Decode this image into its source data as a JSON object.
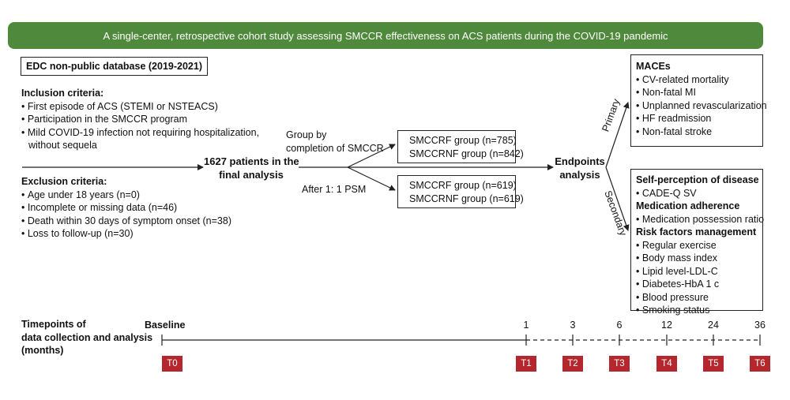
{
  "banner": "A single-center, retrospective cohort study assessing SMCCR effectiveness on ACS patients during the COVID-19 pandemic",
  "database": "EDC non-public database (2019-2021)",
  "inclusion": {
    "heading": "Inclusion criteria:",
    "items": [
      "First episode of ACS (STEMI or NSTEACS)",
      "Participation in the SMCCR program",
      "Mild COVID-19 infection not requiring hospitalization,",
      "without sequela"
    ]
  },
  "exclusion": {
    "heading": "Exclusion criteria:",
    "items": [
      "Age under 18 years (n=0)",
      "Incomplete or missing data (n=46)",
      "Death within 30 days of symptom onset (n=38)",
      "Loss to follow-up (n=30)"
    ]
  },
  "patients": {
    "line1": "1627 patients in the",
    "line2": "final analysis"
  },
  "grouping": {
    "line1": "Group by",
    "line2": "completion of SMCCR",
    "psm": "After 1: 1 PSM"
  },
  "groups_before": [
    "SMCCRF group (n=785)",
    "SMCCRNF group (n=842)"
  ],
  "groups_after": [
    "SMCCRF group (n=619)",
    "SMCCRNF group (n=619)"
  ],
  "endpoints": {
    "line1": "Endpoints",
    "line2": "analysis",
    "primary": "Primary",
    "secondary": "Secondary"
  },
  "maces": {
    "heading": "MACEs",
    "items": [
      "CV-related mortality",
      "Non-fatal MI",
      "Unplanned revascularization",
      "HF readmission",
      "Non-fatal stroke"
    ]
  },
  "secondary_box": {
    "self_heading": "Self-perception of disease",
    "self_items": [
      "CADE-Q SV"
    ],
    "med_heading": "Medication adherence",
    "med_items": [
      "Medication possession ratio"
    ],
    "risk_heading": "Risk factors management",
    "risk_items": [
      "Regular exercise",
      "Body mass index",
      "Lipid level-LDL-C",
      "Diabetes-HbA 1 c",
      "Blood pressure",
      "Smoking status"
    ]
  },
  "timeline": {
    "label": [
      "Timepoints of",
      "data collection and analysis",
      "(months)"
    ],
    "baseline": "Baseline",
    "months": [
      "1",
      "3",
      "6",
      "12",
      "24",
      "36"
    ],
    "tags": [
      "T0",
      "T1",
      "T2",
      "T3",
      "T4",
      "T5",
      "T6"
    ],
    "tag_color": "#b3272d",
    "banner_color": "#4f8a3c"
  }
}
